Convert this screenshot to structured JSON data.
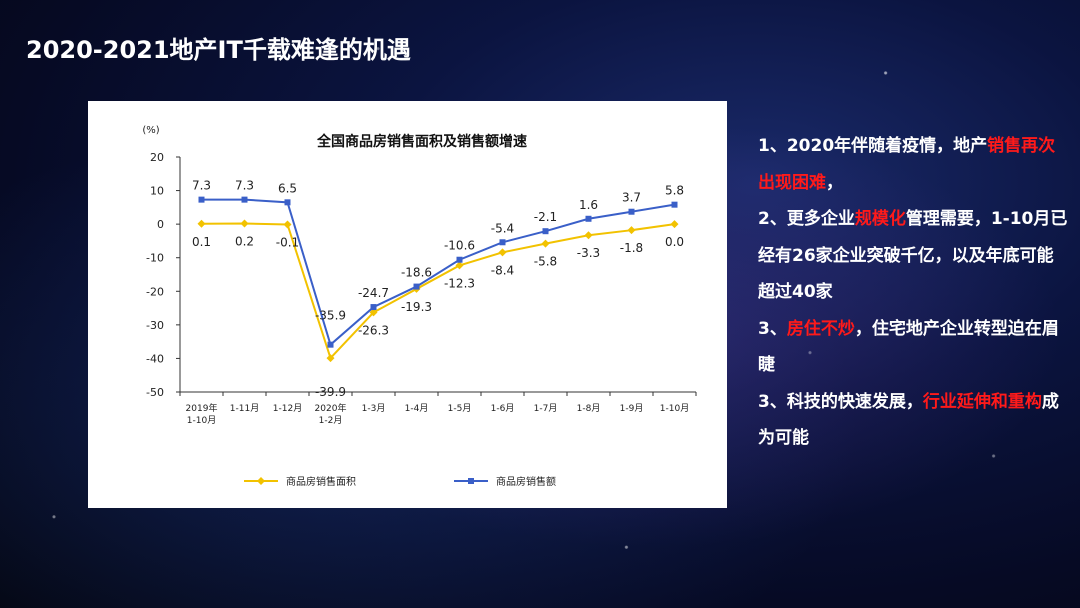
{
  "slide": {
    "title": "2020-2021地产IT千载难逢的机遇"
  },
  "chart_data": {
    "type": "line",
    "title": "全国商品房销售面积及销售额增速",
    "ylabel": "(%)",
    "xlabel": "",
    "ylim": [
      -50,
      20
    ],
    "yticks": [
      "20",
      "10",
      "0",
      "-10",
      "-20",
      "-30",
      "-40",
      "-50"
    ],
    "categories": [
      "2019年\n1-10月",
      "1-11月",
      "1-12月",
      "2020年\n1-2月",
      "1-3月",
      "1-4月",
      "1-5月",
      "1-6月",
      "1-7月",
      "1-8月",
      "1-9月",
      "1-10月"
    ],
    "grid": false,
    "legend_position": "bottom",
    "series": [
      {
        "name": "商品房销售面积",
        "color": "#f2c200",
        "marker": "diamond",
        "values": [
          0.1,
          0.2,
          -0.1,
          -39.9,
          -26.3,
          -19.3,
          -12.3,
          -8.4,
          -5.8,
          -3.3,
          -1.8,
          0.0
        ],
        "labels": [
          "0.1",
          "0.2",
          "-0.1",
          "-39.9",
          "-26.3",
          "-19.3",
          "-12.3",
          "-8.4",
          "-5.8",
          "-3.3",
          "-1.8",
          "0.0"
        ]
      },
      {
        "name": "商品房销售额",
        "color": "#3a5fc8",
        "marker": "square",
        "values": [
          7.3,
          7.3,
          6.5,
          -35.9,
          -24.7,
          -18.6,
          -10.6,
          -5.4,
          -2.1,
          1.6,
          3.7,
          5.8
        ],
        "labels": [
          "7.3",
          "7.3",
          "6.5",
          "-35.9",
          "-24.7",
          "-18.6",
          "-10.6",
          "-5.4",
          "-2.1",
          "1.6",
          "3.7",
          "5.8"
        ]
      }
    ]
  },
  "notes": [
    {
      "id": "note1",
      "segments": [
        {
          "text": "1、2020年伴随着疫情，地产",
          "emph": false
        },
        {
          "text": "销售再次出现困难",
          "emph": true
        },
        {
          "text": "，",
          "emph": false
        }
      ]
    },
    {
      "id": "note2",
      "segments": [
        {
          "text": "2、更多企业",
          "emph": false
        },
        {
          "text": "规模化",
          "emph": true
        },
        {
          "text": "管理需要，1-10月已经有26家企业突破千亿，以及年底可能超过40家",
          "emph": false
        }
      ]
    },
    {
      "id": "note3",
      "segments": [
        {
          "text": "3、",
          "emph": false
        },
        {
          "text": "房住不炒",
          "emph": true
        },
        {
          "text": "，住宅地产企业转型迫在眉睫",
          "emph": false
        }
      ]
    },
    {
      "id": "note4",
      "segments": [
        {
          "text": "3、科技的快速发展，",
          "emph": false
        },
        {
          "text": "行业延伸和重构",
          "emph": true
        },
        {
          "text": "成为可能",
          "emph": false
        }
      ]
    }
  ]
}
